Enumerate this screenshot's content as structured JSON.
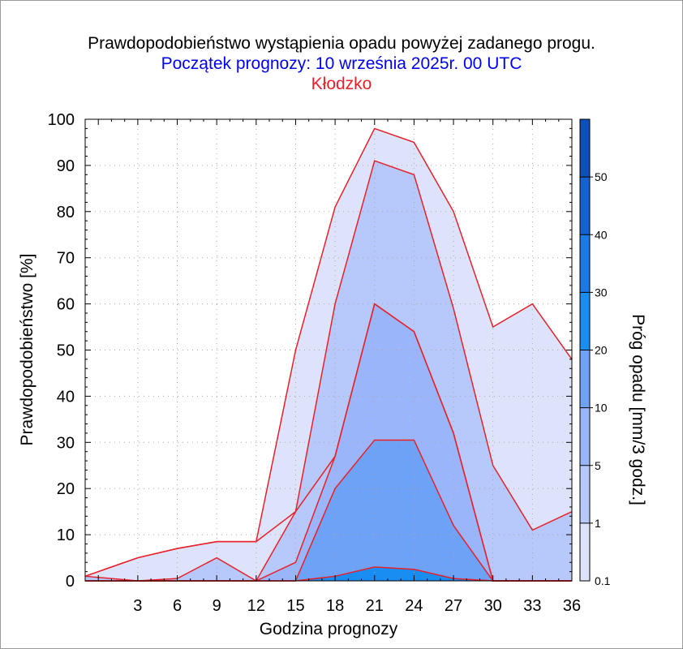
{
  "chart_data": {
    "type": "area",
    "title": "Prawdopodobieństwo wystąpienia opadu powyżej zadanego progu.",
    "subtitle": "Początek prognozy: 10 września 2025r. 00 UTC",
    "location": "Kłodzko",
    "xlabel": "Godzina prognozy",
    "ylabel": "Prawdopodobieństwo [%]",
    "colorbar_label": "Próg opadu [mm/3 godz.]",
    "xlim": [
      -1,
      36
    ],
    "ylim": [
      0,
      100
    ],
    "x_ticks": [
      3,
      6,
      9,
      12,
      15,
      18,
      21,
      24,
      27,
      30,
      33,
      36
    ],
    "y_ticks": [
      0,
      10,
      20,
      30,
      40,
      50,
      60,
      70,
      80,
      90,
      100
    ],
    "grid": true,
    "x": [
      -1,
      3,
      6,
      9,
      12,
      15,
      18,
      21,
      24,
      27,
      30,
      33,
      36
    ],
    "series": [
      {
        "threshold": 0.1,
        "color": "#dce3fb",
        "values": [
          1,
          5,
          7,
          8.5,
          8.5,
          15,
          27,
          60,
          54,
          32,
          0,
          0,
          0
        ]
      },
      {
        "threshold": 0.1,
        "color": "#dce3fb",
        "values": [
          1,
          5,
          7,
          8.5,
          8.5,
          50,
          81,
          98,
          95,
          80,
          55,
          60,
          48
        ]
      },
      {
        "threshold": 1,
        "color": "#b7c9fb",
        "values": [
          1,
          0,
          0.5,
          5,
          0,
          15,
          60,
          91,
          88,
          59,
          25,
          11,
          15
        ]
      },
      {
        "threshold": 5,
        "color": "#9ab5f9",
        "values": [
          0,
          0,
          0,
          0,
          0,
          4,
          27,
          60,
          54,
          32,
          0,
          0,
          0
        ]
      },
      {
        "threshold": 10,
        "color": "#6ea2f7",
        "values": [
          0,
          0,
          0,
          0,
          0,
          0,
          20,
          30.5,
          30.5,
          12,
          0,
          0,
          0
        ]
      },
      {
        "threshold": 20,
        "color": "#1a8df3",
        "values": [
          0,
          0,
          0,
          0,
          0,
          0,
          1,
          3,
          2.5,
          0.5,
          0,
          0,
          0
        ]
      }
    ],
    "colorbar": {
      "bounds": [
        0.1,
        1,
        5,
        10,
        20,
        30,
        40,
        50,
        60
      ],
      "tick_labels": [
        "0.1",
        "1",
        "5",
        "10",
        "20",
        "30",
        "40",
        "50"
      ],
      "colors": [
        "#dce3fb",
        "#b7c9fb",
        "#9ab5f9",
        "#6ea2f7",
        "#1a8df3",
        "#1a7ae6",
        "#1561d1",
        "#0f4fbb"
      ]
    },
    "line_color": "#e8202a"
  }
}
